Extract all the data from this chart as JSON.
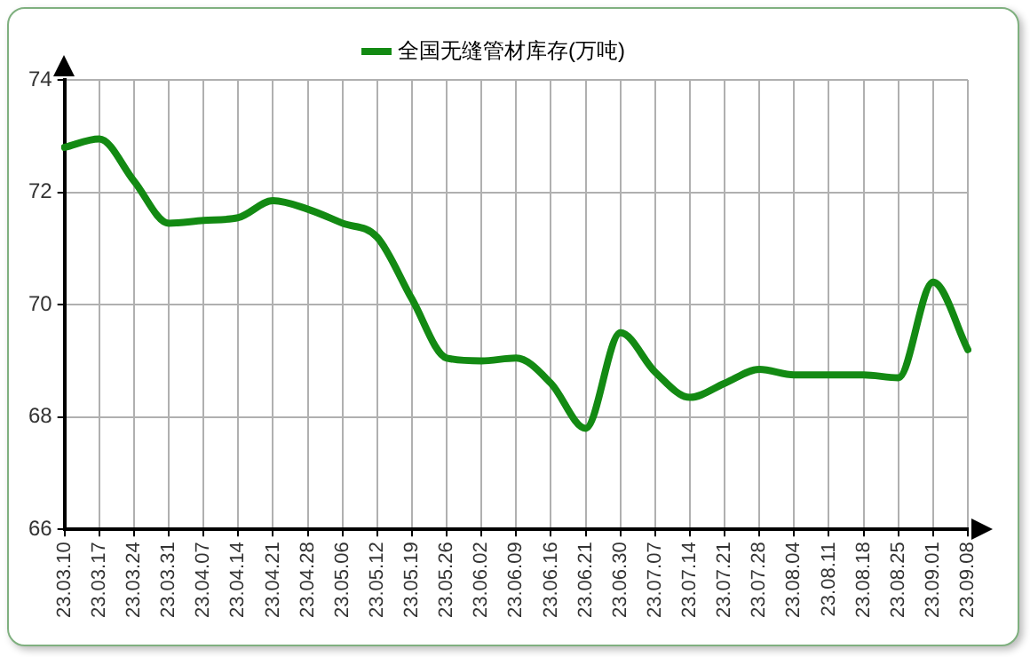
{
  "chart_data": {
    "type": "line",
    "categories": [
      "23.03.10",
      "23.03.17",
      "23.03.24",
      "23.03.31",
      "23.04.07",
      "23.04.14",
      "23.04.21",
      "23.04.28",
      "23.05.06",
      "23.05.12",
      "23.05.19",
      "23.05.26",
      "23.06.02",
      "23.06.09",
      "23.06.16",
      "23.06.21",
      "23.06.30",
      "23.07.07",
      "23.07.14",
      "23.07.21",
      "23.07.28",
      "23.08.04",
      "23.08.11",
      "23.08.18",
      "23.08.25",
      "23.09.01",
      "23.09.08"
    ],
    "series": [
      {
        "name": "全国无缝管材库存(万吨)",
        "color": "#138a13",
        "values": [
          72.8,
          72.95,
          72.2,
          71.45,
          71.5,
          71.55,
          71.85,
          71.7,
          71.45,
          71.2,
          70.1,
          69.05,
          69.0,
          69.05,
          68.6,
          67.8,
          69.5,
          68.8,
          68.35,
          68.6,
          68.85,
          68.75,
          68.75,
          68.75,
          68.7,
          70.4,
          69.2
        ]
      }
    ],
    "ylim": [
      66,
      74
    ],
    "yticks": [
      66,
      68,
      70,
      72,
      74
    ],
    "grid": true,
    "legend": "top",
    "marker": "none",
    "line_style": "solid"
  }
}
